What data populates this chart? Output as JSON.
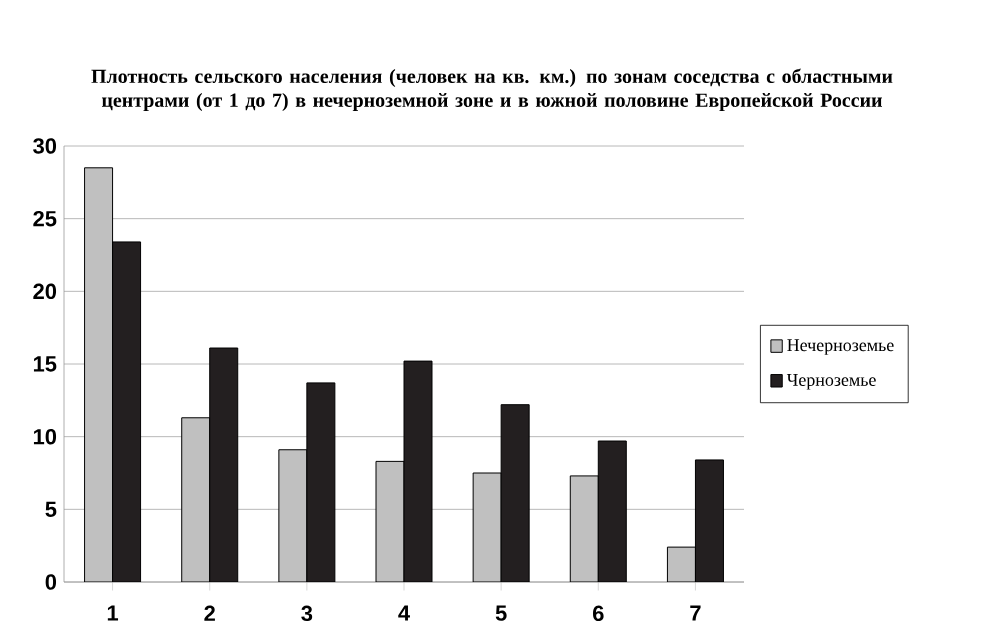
{
  "chart_data": {
    "type": "bar",
    "title": "Плотность сельского населения (человек на кв. км.) по зонам соседства с областными центрами (от 1 до 7) в нечерноземной зоне и в южной половине Европейской России",
    "categories": [
      "1",
      "2",
      "3",
      "4",
      "5",
      "6",
      "7"
    ],
    "series": [
      {
        "name": "Нечерноземье",
        "color": "#c0c0c0",
        "values": [
          28.5,
          11.3,
          9.1,
          8.3,
          7.5,
          7.3,
          2.4
        ]
      },
      {
        "name": "Черноземье",
        "color": "#231f20",
        "values": [
          23.4,
          16.1,
          13.7,
          15.2,
          12.2,
          9.7,
          8.4
        ]
      }
    ],
    "ylim": [
      0,
      30
    ],
    "yticks": [
      0,
      5,
      10,
      15,
      20,
      25,
      30
    ],
    "grid": "y",
    "legend": "right"
  }
}
